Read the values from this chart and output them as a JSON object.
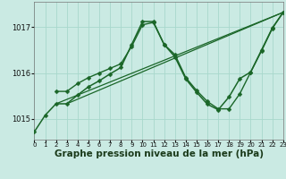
{
  "background_color": "#caeae3",
  "grid_color": "#a8d8cc",
  "line_color": "#1a6628",
  "xlabel": "Graphe pression niveau de la mer (hPa)",
  "xlabel_fontsize": 7.5,
  "xlim": [
    0,
    23
  ],
  "ylim": [
    1014.55,
    1017.55
  ],
  "yticks": [
    1015,
    1016,
    1017
  ],
  "xticks": [
    0,
    1,
    2,
    3,
    4,
    5,
    6,
    7,
    8,
    9,
    10,
    11,
    12,
    13,
    14,
    15,
    16,
    17,
    18,
    19,
    20,
    21,
    22,
    23
  ],
  "line1_x": [
    0,
    1,
    2,
    3,
    4,
    5,
    6,
    7,
    8,
    9,
    10,
    11,
    12,
    13,
    14,
    15,
    16,
    17,
    18,
    19,
    20,
    21,
    22,
    23
  ],
  "line1_y": [
    1014.72,
    1015.08,
    1015.33,
    1015.33,
    1015.52,
    1015.7,
    1015.83,
    1015.98,
    1016.12,
    1016.62,
    1017.12,
    1017.12,
    1016.62,
    1016.35,
    1015.87,
    1015.58,
    1015.32,
    1015.2,
    1015.48,
    1015.88,
    1016.02,
    1016.5,
    1016.98,
    1017.32
  ],
  "line2_x": [
    2,
    3,
    4,
    5,
    6,
    7,
    8,
    9,
    10,
    11,
    12,
    13,
    14,
    15,
    16,
    17,
    18,
    19,
    20,
    21,
    22,
    23
  ],
  "line2_y": [
    1015.6,
    1015.6,
    1015.77,
    1015.9,
    1016.0,
    1016.1,
    1016.2,
    1016.58,
    1017.05,
    1017.1,
    1016.62,
    1016.4,
    1015.9,
    1015.62,
    1015.38,
    1015.22,
    1015.22,
    1015.55,
    1016.02,
    1016.48,
    1016.97,
    1017.32
  ],
  "trend1_x": [
    2,
    23
  ],
  "trend1_y": [
    1015.33,
    1017.32
  ],
  "trend2_x": [
    3,
    23
  ],
  "trend2_y": [
    1015.33,
    1017.32
  ],
  "marker": "D",
  "markersize": 2.5,
  "linewidth1": 1.1,
  "linewidth2": 1.0,
  "trend_linewidth": 0.9
}
